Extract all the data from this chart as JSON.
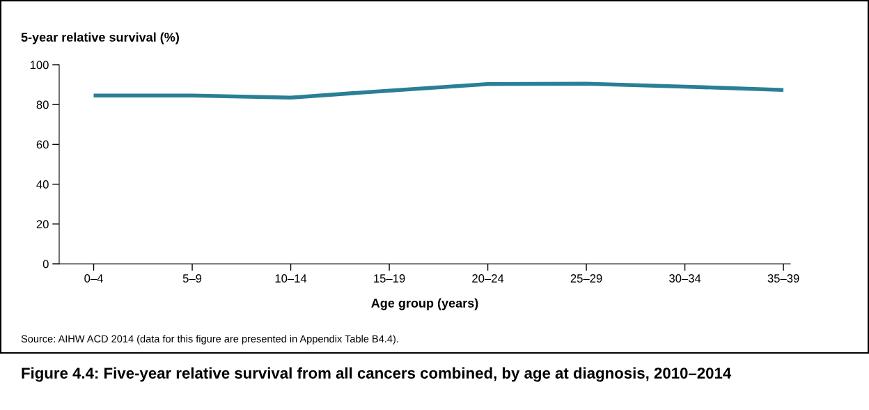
{
  "chart_data": {
    "type": "line",
    "title": "Figure 4.4: Five-year relative survival from all cancers combined, by age at diagnosis, 2010–2014",
    "xlabel": "Age group (years)",
    "ylabel": "5-year relative survival (%)",
    "categories": [
      "0–4",
      "5–9",
      "10–14",
      "15–19",
      "20–24",
      "25–29",
      "30–34",
      "35–39"
    ],
    "series": [
      {
        "color": "#2a7f96",
        "values": [
          84.5,
          84.5,
          83.5,
          87,
          90.3,
          90.5,
          89.0,
          87.3
        ]
      }
    ],
    "ylim": [
      0,
      100
    ],
    "yticks": [
      0,
      20,
      40,
      60,
      80,
      100
    ],
    "grid": false,
    "legend": false,
    "marker": "none",
    "line_style": "solid",
    "annotations": [
      "Source: AIHW ACD 2014 (data for this figure are presented in Appendix Table B4.4)."
    ]
  }
}
